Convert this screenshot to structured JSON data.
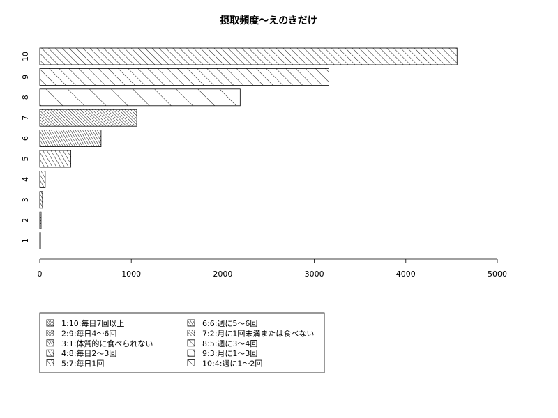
{
  "chart_data": {
    "type": "bar",
    "orientation": "horizontal",
    "title": "摂取頻度〜えのきだけ",
    "xlabel": "",
    "ylabel": "",
    "categories": [
      "1",
      "2",
      "3",
      "4",
      "5",
      "6",
      "7",
      "8",
      "9",
      "10"
    ],
    "values": [
      8,
      15,
      30,
      60,
      340,
      670,
      1060,
      2190,
      3160,
      4560
    ],
    "xlim": [
      0,
      5000
    ],
    "x_ticks": [
      "0",
      "1000",
      "2000",
      "3000",
      "4000",
      "5000"
    ],
    "grid": false,
    "hatch_angles": [
      60,
      60,
      60,
      60,
      60,
      60,
      45,
      45,
      45,
      45
    ],
    "hatch_spacing": [
      2,
      2,
      3,
      4,
      5,
      3,
      3,
      22,
      10,
      7
    ],
    "bar_color": "#000000",
    "legend": {
      "position": "bottom-left",
      "entries": [
        "1:10:毎日7回以上",
        "2:9:毎日4〜6回",
        "3:1:体質的に食べられない",
        "4:8:毎日2〜3回",
        "5:7:毎日1回",
        "6:6:週に5〜6回",
        "7:2:月に1回未満または食べない",
        "8:5:週に3〜4回",
        "9:3:月に1〜3回",
        "10:4:週に1〜2回"
      ]
    }
  }
}
